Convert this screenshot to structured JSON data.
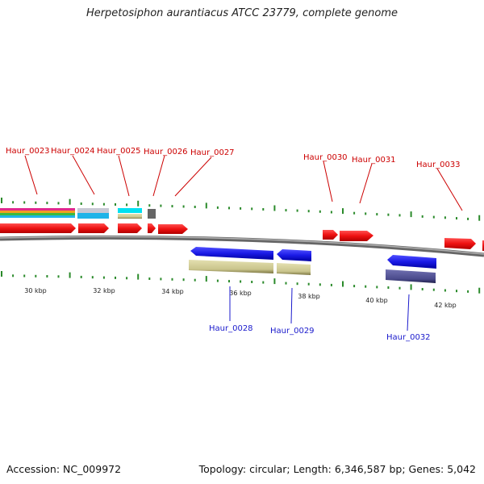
{
  "title": "Herpetosiphon aurantiacus ATCC 23779, complete genome",
  "footer": {
    "accession": "Accession: NC_009972",
    "summary": "Topology: circular; Length: 6,346,587 bp; Genes: 5,042"
  },
  "colors": {
    "forward_gene": "#ee1111",
    "reverse_gene": "#1a1ae6",
    "label_forward": "#cc0000",
    "label_reverse": "#1a1acc",
    "tick": "#2a8a2a",
    "backbone": "#888888",
    "khaki": "#c9c48c",
    "slate": "#4a4a8c"
  },
  "kbp_labels": [
    "30 kbp",
    "32 kbp",
    "34 kbp",
    "36 kbp",
    "38 kbp",
    "40 kbp",
    "42 kbp"
  ],
  "forward_labels": [
    "Haur_0023",
    "Haur_0024",
    "Haur_0025",
    "Haur_0026",
    "Haur_0027",
    "Haur_0030",
    "Haur_0031",
    "Haur_0033"
  ],
  "reverse_labels": [
    "Haur_0028",
    "Haur_0029",
    "Haur_0032"
  ],
  "track_colors": [
    "#e0288c",
    "#f0a020",
    "#3cba3c",
    "#20b4e8",
    "#00e0f0",
    "#b8b8c8",
    "#666666"
  ]
}
